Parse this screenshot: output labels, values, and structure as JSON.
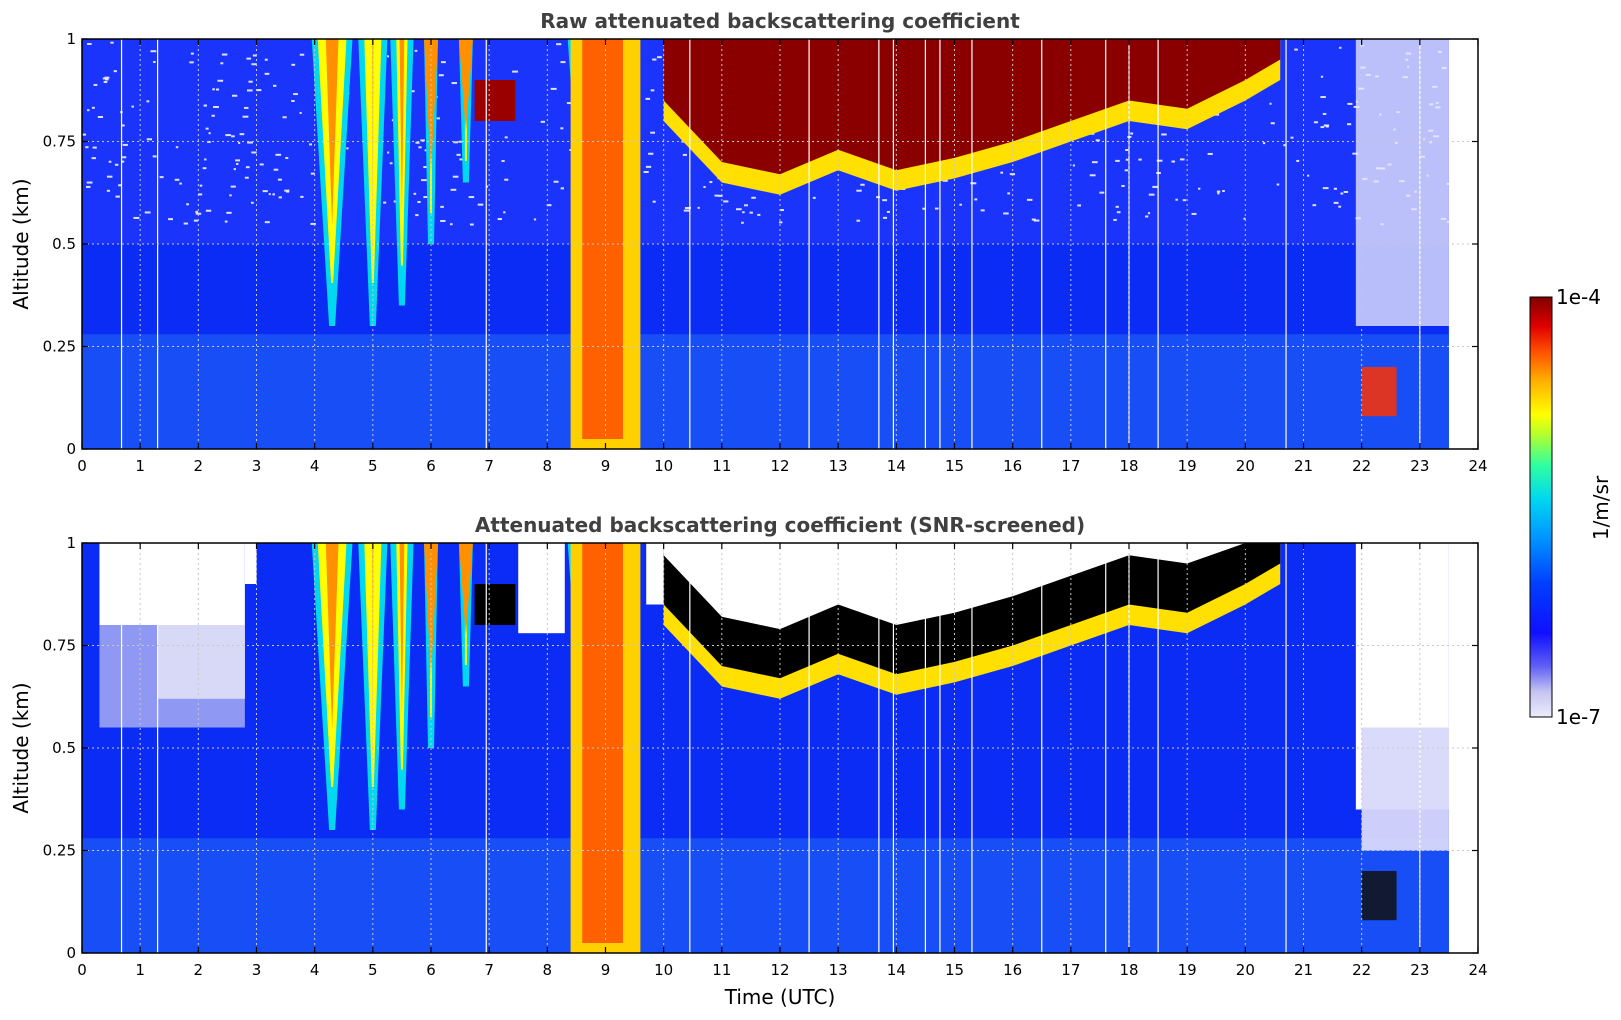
{
  "chart_data": [
    {
      "type": "heatmap",
      "title": "Raw attenuated backscattering coefficient",
      "xlabel": "",
      "ylabel": "Altitude (km)",
      "xlim": [
        0,
        24
      ],
      "ylim": [
        0,
        1
      ],
      "xticks": [
        "0",
        "1",
        "2",
        "3",
        "4",
        "5",
        "6",
        "7",
        "8",
        "9",
        "10",
        "11",
        "12",
        "13",
        "14",
        "15",
        "16",
        "17",
        "18",
        "19",
        "20",
        "21",
        "22",
        "23",
        "24"
      ],
      "yticks": [
        "0",
        "0.25",
        "0.5",
        "0.75",
        "1"
      ],
      "ytick_values": [
        0,
        0.25,
        0.5,
        0.75,
        1
      ],
      "grid": true,
      "data_end_time": 23.5,
      "cloud_top_layer_approx": [
        {
          "t": 10.0,
          "base": 0.8
        },
        {
          "t": 11.0,
          "base": 0.65
        },
        {
          "t": 12.0,
          "base": 0.62
        },
        {
          "t": 13.0,
          "base": 0.68
        },
        {
          "t": 14.0,
          "base": 0.63
        },
        {
          "t": 15.0,
          "base": 0.66
        },
        {
          "t": 16.0,
          "base": 0.7
        },
        {
          "t": 17.0,
          "base": 0.75
        },
        {
          "t": 18.0,
          "base": 0.8
        },
        {
          "t": 19.0,
          "base": 0.78
        },
        {
          "t": 20.0,
          "base": 0.85
        }
      ],
      "precip_shafts_approx": [
        {
          "t": 4.3,
          "bottom": 0.3
        },
        {
          "t": 5.0,
          "bottom": 0.3
        },
        {
          "t": 5.5,
          "bottom": 0.35
        },
        {
          "t": 6.0,
          "bottom": 0.5
        },
        {
          "t": 6.6,
          "bottom": 0.65
        },
        {
          "t": 8.9,
          "bottom": 0.0
        }
      ]
    },
    {
      "type": "heatmap",
      "title": "Attenuated backscattering coefficient (SNR-screened)",
      "xlabel": "Time (UTC)",
      "ylabel": "Altitude (km)",
      "xlim": [
        0,
        24
      ],
      "ylim": [
        0,
        1
      ],
      "xticks": [
        "0",
        "1",
        "2",
        "3",
        "4",
        "5",
        "6",
        "7",
        "8",
        "9",
        "10",
        "11",
        "12",
        "13",
        "14",
        "15",
        "16",
        "17",
        "18",
        "19",
        "20",
        "21",
        "22",
        "23",
        "24"
      ],
      "yticks": [
        "0",
        "0.25",
        "0.5",
        "0.75",
        "1"
      ],
      "ytick_values": [
        0,
        0.25,
        0.5,
        0.75,
        1
      ],
      "grid": true,
      "data_end_time": 23.5
    }
  ],
  "colorbar": {
    "label": "1/m/sr",
    "max_label": "1e-4",
    "min_label": "1e-7",
    "max_value": 0.0001,
    "min_value": 1e-07,
    "scale": "log",
    "colormap": [
      "#e8e8fa",
      "#c9c9f4",
      "#7f7ff0",
      "#2020ff",
      "#0050ff",
      "#00a0ff",
      "#00e0e0",
      "#40ff90",
      "#c0ff30",
      "#ffff00",
      "#ffb000",
      "#ff5000",
      "#e00000",
      "#800000"
    ]
  }
}
